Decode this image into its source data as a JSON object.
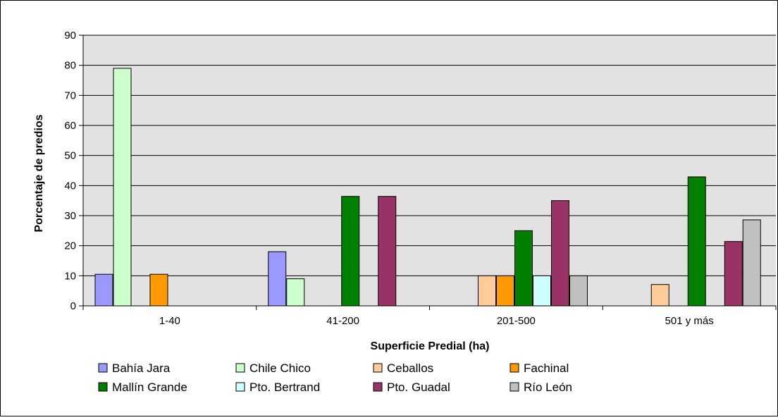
{
  "chart_data": {
    "type": "bar",
    "title": "",
    "xlabel": "Superficie Predial (ha)",
    "ylabel": "Porcentaje de predios",
    "ylim": [
      0,
      90
    ],
    "yticks": [
      0,
      10,
      20,
      30,
      40,
      50,
      60,
      70,
      80,
      90
    ],
    "grid": true,
    "legend_position": "bottom",
    "plot_background": "#e2e2e2",
    "categories": [
      "1-40",
      "41-200",
      "201-500",
      "501 y más"
    ],
    "series": [
      {
        "name": "Bahía Jara",
        "color": "#9999ff",
        "values": [
          10.5,
          18,
          0,
          0
        ]
      },
      {
        "name": "Chile Chico",
        "color": "#ccffcc",
        "values": [
          79,
          9,
          0,
          0
        ]
      },
      {
        "name": "Ceballos",
        "color": "#ffcc99",
        "values": [
          0,
          0,
          10,
          7.1
        ]
      },
      {
        "name": "Fachinal",
        "color": "#ff9900",
        "values": [
          10.5,
          0,
          10,
          0
        ]
      },
      {
        "name": "Mallín Grande",
        "color": "#008000",
        "values": [
          0,
          36.4,
          25,
          42.9
        ]
      },
      {
        "name": "Pto. Bertrand",
        "color": "#ccffff",
        "values": [
          0,
          0,
          10,
          0
        ]
      },
      {
        "name": "Pto. Guadal",
        "color": "#993366",
        "values": [
          0,
          36.4,
          35,
          21.4
        ]
      },
      {
        "name": "Río León",
        "color": "#c0c0c0",
        "values": [
          0,
          0,
          10,
          28.6
        ]
      }
    ]
  }
}
